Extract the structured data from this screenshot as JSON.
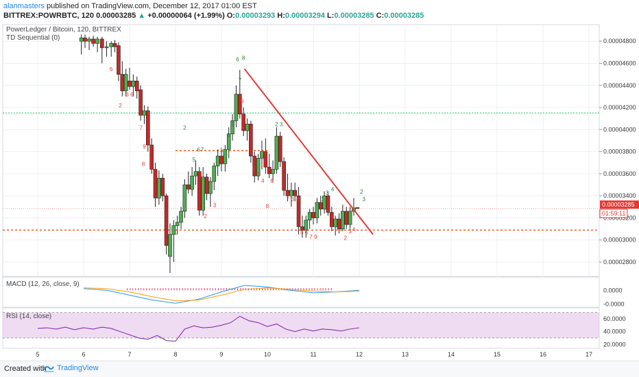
{
  "header": {
    "user": "alanmasters",
    "published_text": " published on TradingView.com, December 12, 2017 01:00 EST",
    "symbol": "BITTREX:POWRBTC, 120",
    "last": "0.00003285",
    "change": "+0.00000064 (+1.99%)",
    "o_label": "O:",
    "o": "0.00003293",
    "h_label": "H:",
    "h": "0.00003294",
    "l_label": "L:",
    "l": "0.00003285",
    "c_label": "C:",
    "c": "0.00003285"
  },
  "legend": {
    "title": "PowerLedger / Bitcoin, 120, BITTREX",
    "td": "TD Sequential (0)",
    "macd": "MACD (12, 26, close, 9)",
    "rsi": "RSI (14, close)"
  },
  "price_tag": {
    "value": "0.00003285",
    "timer": "01:59:11"
  },
  "footer": {
    "created": "Created with",
    "brand": "TradingView"
  },
  "colors": {
    "up": "#26a69a",
    "down": "#ef5350",
    "candle_up": "#4caf50",
    "candle_down": "#c62828",
    "trendline": "#e53935",
    "resistance": "#00c853",
    "support": "#ff5722",
    "macd": "#2196f3",
    "signal": "#ff9800",
    "hist": "#e91e63",
    "rsi": "#7b1fa2"
  },
  "chart_data": [
    {
      "type": "candlestick",
      "title": "PowerLedger / Bitcoin, 120, BITTREX",
      "x_ticks": [
        "5",
        "6",
        "7",
        "8",
        "9",
        "10",
        "11",
        "12",
        "13",
        "14",
        "15",
        "16",
        "17"
      ],
      "y_ticks": [
        "0.00004800",
        "0.00004600",
        "0.00004400",
        "0.00004200",
        "0.00004000",
        "0.00003800",
        "0.00003600",
        "0.00003400",
        "0.00003200",
        "0.00003000",
        "0.00002800"
      ],
      "ylim": [
        2.67e-05,
        4.95e-05
      ],
      "candles": [
        {
          "x": 5.95,
          "o": 4.8,
          "h": 4.86,
          "l": 4.68,
          "c": 4.83
        },
        {
          "x": 6.03,
          "o": 4.83,
          "h": 4.86,
          "l": 4.74,
          "c": 4.8
        },
        {
          "x": 6.12,
          "o": 4.8,
          "h": 4.84,
          "l": 4.72,
          "c": 4.82
        },
        {
          "x": 6.21,
          "o": 4.82,
          "h": 4.85,
          "l": 4.75,
          "c": 4.78
        },
        {
          "x": 6.3,
          "o": 4.78,
          "h": 4.84,
          "l": 4.7,
          "c": 4.82
        },
        {
          "x": 6.4,
          "o": 4.82,
          "h": 4.84,
          "l": 4.6,
          "c": 4.74
        },
        {
          "x": 6.5,
          "o": 4.74,
          "h": 4.8,
          "l": 4.66,
          "c": 4.75
        },
        {
          "x": 6.6,
          "o": 4.75,
          "h": 4.8,
          "l": 4.66,
          "c": 4.78
        },
        {
          "x": 6.68,
          "o": 4.78,
          "h": 4.81,
          "l": 4.7,
          "c": 4.75
        },
        {
          "x": 6.76,
          "o": 4.76,
          "h": 4.79,
          "l": 4.44,
          "c": 4.5
        },
        {
          "x": 6.84,
          "o": 4.5,
          "h": 4.62,
          "l": 4.3,
          "c": 4.35
        },
        {
          "x": 6.92,
          "o": 4.35,
          "h": 4.55,
          "l": 4.3,
          "c": 4.5
        },
        {
          "x": 7.0,
          "o": 4.44,
          "h": 4.56,
          "l": 4.36,
          "c": 4.39
        },
        {
          "x": 7.08,
          "o": 4.39,
          "h": 4.5,
          "l": 4.3,
          "c": 4.44
        },
        {
          "x": 7.16,
          "o": 4.44,
          "h": 4.48,
          "l": 4.28,
          "c": 4.35
        },
        {
          "x": 7.24,
          "o": 4.36,
          "h": 4.4,
          "l": 4.08,
          "c": 4.13
        },
        {
          "x": 7.32,
          "o": 4.13,
          "h": 4.22,
          "l": 4.05,
          "c": 4.17
        },
        {
          "x": 7.4,
          "o": 4.17,
          "h": 4.21,
          "l": 3.8,
          "c": 3.86
        },
        {
          "x": 7.48,
          "o": 3.86,
          "h": 3.92,
          "l": 3.6,
          "c": 3.64
        },
        {
          "x": 7.56,
          "o": 3.64,
          "h": 3.7,
          "l": 3.3,
          "c": 3.38
        },
        {
          "x": 7.64,
          "o": 3.38,
          "h": 3.63,
          "l": 3.32,
          "c": 3.56
        },
        {
          "x": 7.72,
          "o": 3.56,
          "h": 3.6,
          "l": 3.35,
          "c": 3.4
        },
        {
          "x": 7.8,
          "o": 3.4,
          "h": 3.42,
          "l": 2.87,
          "c": 2.95
        },
        {
          "x": 7.88,
          "o": 2.85,
          "h": 3.15,
          "l": 2.7,
          "c": 3.05
        },
        {
          "x": 7.96,
          "o": 3.05,
          "h": 3.18,
          "l": 2.8,
          "c": 3.13
        },
        {
          "x": 8.04,
          "o": 3.13,
          "h": 3.22,
          "l": 3.05,
          "c": 3.16
        },
        {
          "x": 8.12,
          "o": 3.16,
          "h": 3.3,
          "l": 3.1,
          "c": 3.26
        },
        {
          "x": 8.2,
          "o": 3.26,
          "h": 3.55,
          "l": 3.2,
          "c": 3.5
        },
        {
          "x": 8.28,
          "o": 3.5,
          "h": 3.62,
          "l": 3.42,
          "c": 3.46
        },
        {
          "x": 8.36,
          "o": 3.46,
          "h": 3.66,
          "l": 3.4,
          "c": 3.58
        },
        {
          "x": 8.44,
          "o": 3.58,
          "h": 3.72,
          "l": 3.5,
          "c": 3.62
        },
        {
          "x": 8.52,
          "o": 3.62,
          "h": 3.66,
          "l": 3.22,
          "c": 3.27
        },
        {
          "x": 8.6,
          "o": 3.27,
          "h": 3.66,
          "l": 3.22,
          "c": 3.57
        },
        {
          "x": 8.68,
          "o": 3.57,
          "h": 3.6,
          "l": 3.36,
          "c": 3.42
        },
        {
          "x": 8.76,
          "o": 3.42,
          "h": 3.57,
          "l": 3.3,
          "c": 3.53
        },
        {
          "x": 8.84,
          "o": 3.53,
          "h": 3.7,
          "l": 3.45,
          "c": 3.67
        },
        {
          "x": 8.92,
          "o": 3.67,
          "h": 3.82,
          "l": 3.58,
          "c": 3.76
        },
        {
          "x": 9.0,
          "o": 3.76,
          "h": 3.82,
          "l": 3.62,
          "c": 3.69
        },
        {
          "x": 9.08,
          "o": 3.69,
          "h": 3.86,
          "l": 3.62,
          "c": 3.82
        },
        {
          "x": 9.16,
          "o": 3.82,
          "h": 4.02,
          "l": 3.74,
          "c": 3.96
        },
        {
          "x": 9.24,
          "o": 3.96,
          "h": 4.14,
          "l": 3.9,
          "c": 4.08
        },
        {
          "x": 9.32,
          "o": 4.08,
          "h": 4.4,
          "l": 4.02,
          "c": 4.32
        },
        {
          "x": 9.4,
          "o": 4.32,
          "h": 4.54,
          "l": 4.1,
          "c": 4.14
        },
        {
          "x": 9.48,
          "o": 4.14,
          "h": 4.2,
          "l": 3.94,
          "c": 3.99
        },
        {
          "x": 9.56,
          "o": 3.99,
          "h": 4.1,
          "l": 3.9,
          "c": 4.05
        },
        {
          "x": 9.64,
          "o": 4.05,
          "h": 4.08,
          "l": 3.7,
          "c": 3.76
        },
        {
          "x": 9.72,
          "o": 3.76,
          "h": 3.8,
          "l": 3.52,
          "c": 3.58
        },
        {
          "x": 9.8,
          "o": 3.58,
          "h": 3.78,
          "l": 3.54,
          "c": 3.74
        },
        {
          "x": 9.88,
          "o": 3.74,
          "h": 3.9,
          "l": 3.64,
          "c": 3.8
        },
        {
          "x": 9.96,
          "o": 3.8,
          "h": 3.92,
          "l": 3.6,
          "c": 3.66
        },
        {
          "x": 10.04,
          "o": 3.66,
          "h": 3.78,
          "l": 3.56,
          "c": 3.6
        },
        {
          "x": 10.12,
          "o": 3.6,
          "h": 3.72,
          "l": 3.52,
          "c": 3.64
        },
        {
          "x": 10.2,
          "o": 3.64,
          "h": 4.02,
          "l": 3.6,
          "c": 3.94
        },
        {
          "x": 10.28,
          "o": 3.94,
          "h": 3.98,
          "l": 3.66,
          "c": 3.71
        },
        {
          "x": 10.36,
          "o": 3.71,
          "h": 3.75,
          "l": 3.4,
          "c": 3.45
        },
        {
          "x": 10.44,
          "o": 3.45,
          "h": 3.6,
          "l": 3.35,
          "c": 3.4
        },
        {
          "x": 10.52,
          "o": 3.4,
          "h": 3.52,
          "l": 3.3,
          "c": 3.45
        },
        {
          "x": 10.6,
          "o": 3.45,
          "h": 3.52,
          "l": 3.35,
          "c": 3.4
        },
        {
          "x": 10.68,
          "o": 3.4,
          "h": 3.48,
          "l": 3.05,
          "c": 3.12
        },
        {
          "x": 10.76,
          "o": 3.12,
          "h": 3.22,
          "l": 3.02,
          "c": 3.09
        },
        {
          "x": 10.84,
          "o": 3.09,
          "h": 3.22,
          "l": 3.02,
          "c": 3.18
        },
        {
          "x": 10.92,
          "o": 3.18,
          "h": 3.28,
          "l": 3.1,
          "c": 3.25
        },
        {
          "x": 11.0,
          "o": 3.25,
          "h": 3.3,
          "l": 3.14,
          "c": 3.2
        },
        {
          "x": 11.08,
          "o": 3.2,
          "h": 3.38,
          "l": 3.15,
          "c": 3.34
        },
        {
          "x": 11.16,
          "o": 3.34,
          "h": 3.4,
          "l": 3.22,
          "c": 3.28
        },
        {
          "x": 11.24,
          "o": 3.28,
          "h": 3.44,
          "l": 3.24,
          "c": 3.4
        },
        {
          "x": 11.32,
          "o": 3.4,
          "h": 3.44,
          "l": 3.22,
          "c": 3.25
        },
        {
          "x": 11.4,
          "o": 3.25,
          "h": 3.3,
          "l": 3.08,
          "c": 3.12
        },
        {
          "x": 11.48,
          "o": 3.12,
          "h": 3.22,
          "l": 3.04,
          "c": 3.19
        },
        {
          "x": 11.56,
          "o": 3.19,
          "h": 3.24,
          "l": 3.06,
          "c": 3.1
        },
        {
          "x": 11.64,
          "o": 3.1,
          "h": 3.32,
          "l": 3.08,
          "c": 3.26
        },
        {
          "x": 11.72,
          "o": 3.26,
          "h": 3.3,
          "l": 3.1,
          "c": 3.14
        },
        {
          "x": 11.8,
          "o": 3.14,
          "h": 3.3,
          "l": 3.1,
          "c": 3.26
        },
        {
          "x": 11.88,
          "o": 3.26,
          "h": 3.38,
          "l": 3.22,
          "c": 3.29
        },
        {
          "x": 11.96,
          "o": 3.293,
          "h": 3.294,
          "l": 3.285,
          "c": 3.285
        }
      ],
      "levels": {
        "resistance": 4.15e-05,
        "supply": 3.81e-05,
        "current": 3.285e-05,
        "support": 3.09e-05
      },
      "trendline": [
        [
          9.5,
          4.55e-05
        ],
        [
          12.3,
          3.05e-05
        ]
      ]
    },
    {
      "type": "line",
      "title": "MACD (12, 26, close, 9)",
      "y_ticks": [
        "0.0000",
        "-0.0000"
      ],
      "x": [
        6.0,
        6.5,
        7.0,
        7.5,
        8.0,
        8.5,
        9.0,
        9.5,
        10.0,
        10.5,
        11.0,
        11.5,
        12.0
      ],
      "series": [
        {
          "name": "MACD",
          "values": [
            0.2,
            0.0,
            -0.6,
            -1.2,
            -1.6,
            -1.1,
            -0.2,
            0.6,
            0.4,
            0.0,
            -0.3,
            -0.2,
            0.0
          ]
        },
        {
          "name": "Signal",
          "values": [
            0.3,
            0.2,
            -0.2,
            -0.8,
            -1.3,
            -1.2,
            -0.6,
            0.1,
            0.3,
            0.1,
            -0.1,
            -0.2,
            -0.1
          ]
        }
      ]
    },
    {
      "type": "line",
      "title": "RSI (14, close)",
      "y_ticks": [
        "60.0000",
        "40.0000",
        "20.0000"
      ],
      "ylim": [
        15,
        75
      ],
      "x": [
        5.0,
        5.2,
        5.4,
        5.6,
        5.8,
        6.0,
        6.2,
        6.4,
        6.6,
        6.8,
        7.0,
        7.2,
        7.4,
        7.6,
        7.8,
        8.0,
        8.2,
        8.4,
        8.6,
        8.8,
        9.0,
        9.2,
        9.4,
        9.6,
        9.8,
        10.0,
        10.2,
        10.4,
        10.6,
        10.8,
        11.0,
        11.2,
        11.4,
        11.6,
        11.8,
        12.0
      ],
      "series": [
        {
          "name": "RSI",
          "values": [
            45,
            46,
            44,
            47,
            43,
            46,
            44,
            47,
            45,
            40,
            35,
            30,
            28,
            34,
            26,
            25,
            44,
            49,
            46,
            47,
            50,
            54,
            64,
            57,
            54,
            48,
            52,
            44,
            40,
            44,
            41,
            44,
            43,
            41,
            44,
            46
          ]
        }
      ]
    }
  ]
}
